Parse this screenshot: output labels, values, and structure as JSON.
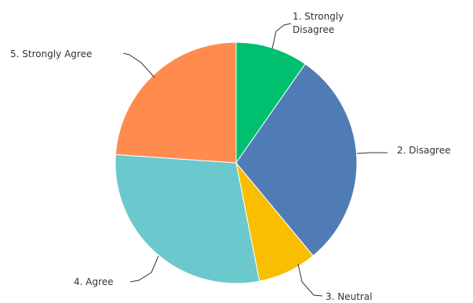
{
  "chart_data": {
    "type": "pie",
    "title": "",
    "start_angle_deg": 0,
    "direction": "clockwise",
    "slices": [
      {
        "label": "1. Strongly Disagree",
        "label_lines": [
          "1. Strongly",
          "Disagree"
        ],
        "value": 9.7,
        "color": "#00BF6F"
      },
      {
        "label": "2. Disagree",
        "label_lines": [
          "2. Disagree"
        ],
        "value": 29.3,
        "color": "#507CB6"
      },
      {
        "label": "3. Neutral",
        "label_lines": [
          "3. Neutral"
        ],
        "value": 7.9,
        "color": "#F9BE00"
      },
      {
        "label": "4. Agree",
        "label_lines": [
          "4. Agree"
        ],
        "value": 29.2,
        "color": "#6BC8CD"
      },
      {
        "label": "5. Strongly Agree",
        "label_lines": [
          "5. Strongly Agree"
        ],
        "value": 23.9,
        "color": "#FF8B4F"
      }
    ]
  }
}
